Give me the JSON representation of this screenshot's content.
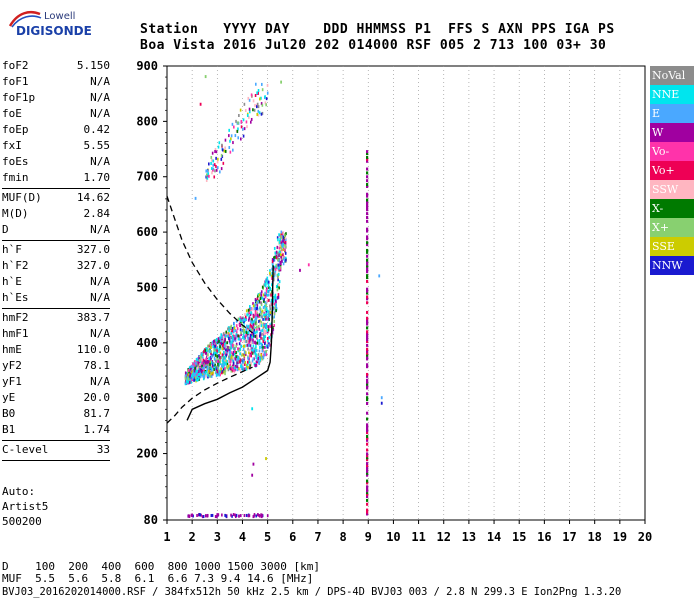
{
  "logo": {
    "line1": "Lowell",
    "line2": "DIGISONDE"
  },
  "header": {
    "labels": [
      "Station",
      "YYYY",
      "DAY",
      "DDD",
      "HHMMSS",
      "P1",
      "FFS",
      "S",
      "AXN",
      "PPS",
      "IGA",
      "PS"
    ],
    "values": [
      "Boa Vista",
      "2016",
      "Jul20",
      "202",
      "014000",
      "RSF",
      "005",
      "2",
      "713",
      "100",
      "03+",
      "30"
    ]
  },
  "params": {
    "group1": [
      {
        "label": "foF2",
        "value": "5.150"
      },
      {
        "label": "foF1",
        "value": "N/A"
      },
      {
        "label": "foF1p",
        "value": "N/A"
      },
      {
        "label": "foE",
        "value": "N/A"
      },
      {
        "label": "foEp",
        "value": "0.42"
      },
      {
        "label": "fxI",
        "value": "5.55"
      },
      {
        "label": "foEs",
        "value": "N/A"
      },
      {
        "label": "fmin",
        "value": "1.70"
      }
    ],
    "group2": [
      {
        "label": "MUF(D)",
        "value": "14.62"
      },
      {
        "label": "M(D)",
        "value": "2.84"
      },
      {
        "label": "D",
        "value": "N/A"
      }
    ],
    "group3": [
      {
        "label": "h`F",
        "value": "327.0"
      },
      {
        "label": "h`F2",
        "value": "327.0"
      },
      {
        "label": "h`E",
        "value": "N/A"
      },
      {
        "label": "h`Es",
        "value": "N/A"
      }
    ],
    "group4": [
      {
        "label": "hmF2",
        "value": "383.7"
      },
      {
        "label": "hmF1",
        "value": "N/A"
      },
      {
        "label": "hmE",
        "value": "110.0"
      },
      {
        "label": "yF2",
        "value": "78.1"
      },
      {
        "label": "yF1",
        "value": "N/A"
      },
      {
        "label": "yE",
        "value": "20.0"
      },
      {
        "label": "B0",
        "value": "81.7"
      },
      {
        "label": "B1",
        "value": "1.74"
      }
    ],
    "group5": [
      {
        "label": "C-level",
        "value": "33"
      }
    ]
  },
  "auto": {
    "line1": "Auto:",
    "line2": "Artist5",
    "line3": "500200"
  },
  "legend": [
    {
      "label": "NoVal",
      "color": "#8c8c8c"
    },
    {
      "label": "NNE",
      "color": "#00e5ee"
    },
    {
      "label": "E",
      "color": "#4aa8ff"
    },
    {
      "label": "W",
      "color": "#a000a0"
    },
    {
      "label": "Vo-",
      "color": "#ff33aa"
    },
    {
      "label": "Vo+",
      "color": "#ee0055"
    },
    {
      "label": "SSW",
      "color": "#ffb6c1"
    },
    {
      "label": "X-",
      "color": "#007a00"
    },
    {
      "label": "X+",
      "color": "#88d070"
    },
    {
      "label": "SSE",
      "color": "#cccc00"
    },
    {
      "label": "NNW",
      "color": "#1a1ad0"
    }
  ],
  "bottom": {
    "d_label": "D",
    "d_values": [
      "100",
      "200",
      "400",
      "600",
      "800",
      "1000",
      "1500",
      "3000",
      "[km]"
    ],
    "muf_label": "MUF",
    "muf_values": [
      "5.5",
      "5.6",
      "5.8",
      "6.1",
      "6.6",
      "7.3",
      "9.4",
      "14.6",
      "[MHz]"
    ],
    "footer": "BVJ03_2016202014000.RSF / 384fx512h 50 kHz 2.5 km / DPS-4D BVJ03 003 / 2.8 N 299.3 E Ion2Png 1.3.20"
  },
  "chart_data": {
    "type": "scatter",
    "title": "",
    "xlabel": "",
    "ylabel": "",
    "xlim": [
      1,
      20
    ],
    "ylim": [
      80,
      900
    ],
    "x_ticks": [
      "1",
      "2",
      "3",
      "4",
      "5",
      "6",
      "7",
      "8",
      "9",
      "10",
      "11",
      "12",
      "13",
      "14",
      "15",
      "16",
      "17",
      "18",
      "19",
      "20"
    ],
    "y_ticks": [
      "80",
      "200",
      "300",
      "400",
      "500",
      "600",
      "700",
      "800",
      "900"
    ],
    "grid": true,
    "legend_position": "right",
    "series": [
      {
        "role": "o-trace-cloud",
        "x_range": [
          1.7,
          5.7
        ],
        "lower_y": [
          [
            1.7,
            325
          ],
          [
            2.5,
            335
          ],
          [
            3.0,
            340
          ],
          [
            3.5,
            345
          ],
          [
            4.0,
            350
          ],
          [
            4.5,
            355
          ],
          [
            5.0,
            380
          ],
          [
            5.2,
            420
          ],
          [
            5.4,
            480
          ],
          [
            5.5,
            540
          ]
        ],
        "upper_y": [
          [
            1.7,
            345
          ],
          [
            2.5,
            390
          ],
          [
            3.0,
            410
          ],
          [
            3.5,
            430
          ],
          [
            4.0,
            450
          ],
          [
            4.5,
            480
          ],
          [
            5.0,
            520
          ],
          [
            5.2,
            560
          ],
          [
            5.4,
            600
          ],
          [
            5.6,
            600
          ]
        ]
      },
      {
        "role": "x-trace-cloud",
        "x_range": [
          2.5,
          5.0
        ],
        "lower_y": [
          [
            2.5,
            690
          ],
          [
            3.0,
            700
          ],
          [
            3.5,
            740
          ],
          [
            4.0,
            770
          ],
          [
            4.5,
            810
          ]
        ],
        "upper_y": [
          [
            2.5,
            720
          ],
          [
            3.0,
            760
          ],
          [
            3.5,
            790
          ],
          [
            4.0,
            830
          ],
          [
            4.5,
            870
          ]
        ]
      },
      {
        "role": "vertical-trace-9MHz",
        "x": 8.95,
        "y_range": [
          90,
          755
        ]
      }
    ],
    "solid_profile": [
      [
        1.8,
        260
      ],
      [
        2.0,
        280
      ],
      [
        2.5,
        290
      ],
      [
        3.0,
        298
      ],
      [
        3.5,
        310
      ],
      [
        4.0,
        320
      ],
      [
        4.5,
        335
      ],
      [
        5.0,
        350
      ],
      [
        5.1,
        365
      ],
      [
        5.15,
        400
      ],
      [
        5.18,
        450
      ],
      [
        5.2,
        500
      ],
      [
        5.22,
        540
      ]
    ],
    "dashed_curve_left": [
      [
        1.0,
        665
      ],
      [
        1.3,
        625
      ],
      [
        1.6,
        585
      ],
      [
        2.0,
        545
      ],
      [
        2.5,
        508
      ],
      [
        3.0,
        478
      ],
      [
        3.5,
        453
      ],
      [
        4.0,
        432
      ],
      [
        4.4,
        418
      ]
    ],
    "dashed_curve_right": [
      [
        1.0,
        255
      ],
      [
        1.3,
        268
      ],
      [
        1.6,
        284
      ],
      [
        2.0,
        300
      ],
      [
        2.5,
        315
      ],
      [
        3.0,
        327
      ],
      [
        3.5,
        338
      ],
      [
        4.0,
        348
      ],
      [
        4.4,
        356
      ]
    ],
    "isolated_points": [
      [
        6.6,
        540
      ],
      [
        6.25,
        530
      ],
      [
        9.4,
        520
      ],
      [
        9.5,
        300
      ],
      [
        9.5,
        290
      ],
      [
        4.35,
        280
      ],
      [
        4.4,
        180
      ],
      [
        4.35,
        160
      ],
      [
        4.9,
        190
      ],
      [
        2.5,
        880
      ],
      [
        2.1,
        660
      ],
      [
        2.3,
        830
      ],
      [
        5.5,
        870
      ]
    ],
    "low_trace": {
      "x_range": [
        1.8,
        5.0
      ],
      "y": 85
    }
  }
}
